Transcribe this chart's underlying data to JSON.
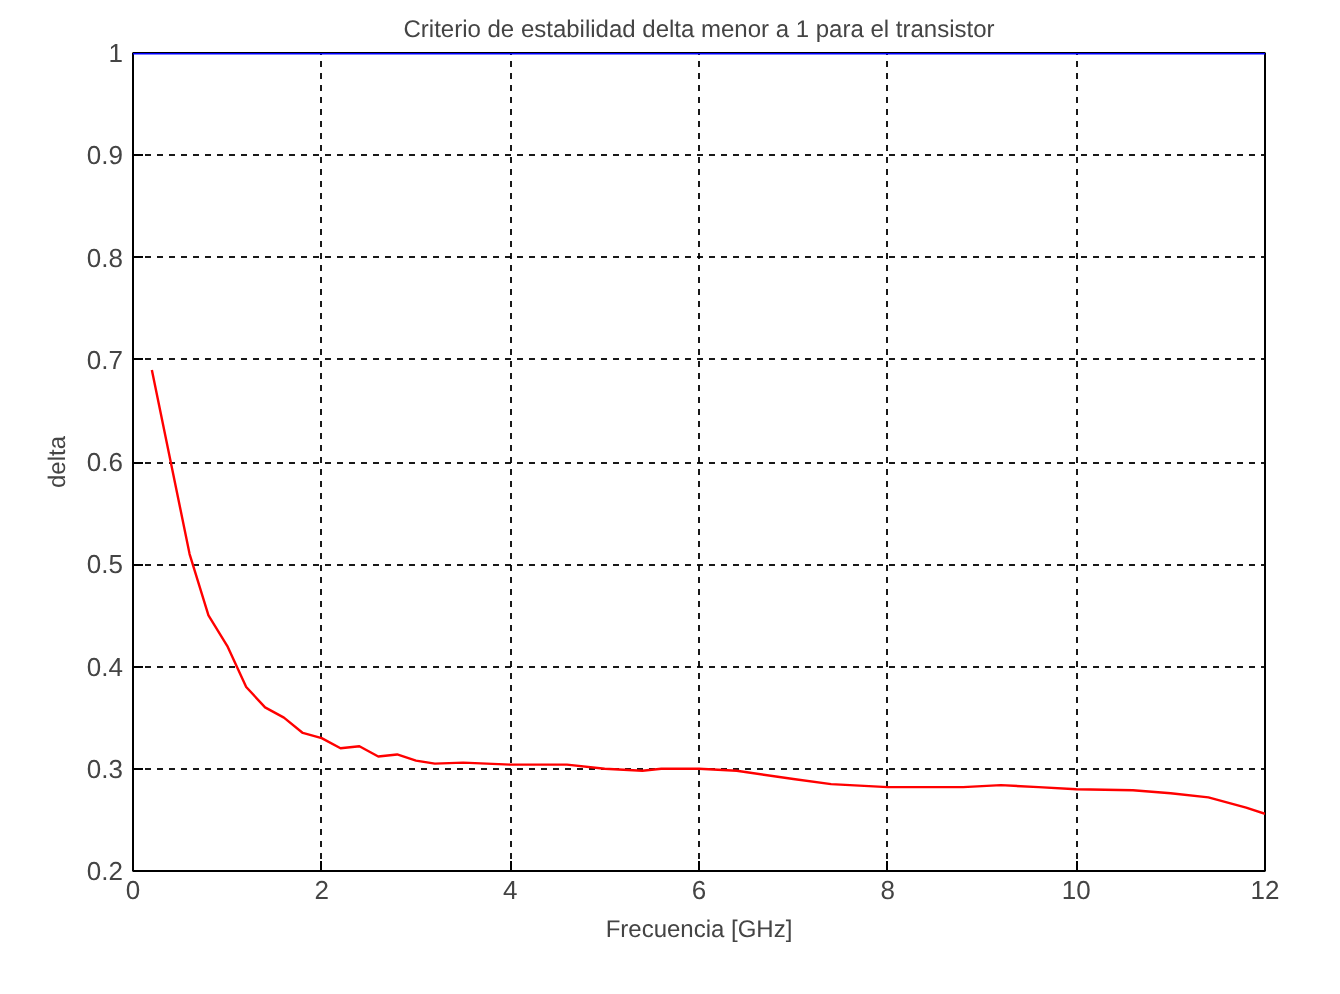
{
  "chart_data": {
    "type": "line",
    "title": "Criterio de estabilidad delta menor a 1 para el transistor",
    "xlabel": "Frecuencia [GHz]",
    "ylabel": "delta",
    "x": [
      0.2,
      0.4,
      0.6,
      0.8,
      1.0,
      1.2,
      1.4,
      1.6,
      1.8,
      2.0,
      2.2,
      2.4,
      2.6,
      2.8,
      3.0,
      3.2,
      3.5,
      4.0,
      4.6,
      5.0,
      5.4,
      5.6,
      6.0,
      6.4,
      7.0,
      7.4,
      8.0,
      8.8,
      9.2,
      9.6,
      10.0,
      10.6,
      11.0,
      11.4,
      11.8,
      12.0
    ],
    "series": [
      {
        "color": "#ff0000",
        "values": [
          0.69,
          0.6,
          0.51,
          0.45,
          0.42,
          0.38,
          0.36,
          0.35,
          0.335,
          0.33,
          0.32,
          0.322,
          0.312,
          0.314,
          0.308,
          0.305,
          0.306,
          0.304,
          0.304,
          0.3,
          0.298,
          0.3,
          0.3,
          0.298,
          0.29,
          0.285,
          0.282,
          0.282,
          0.284,
          0.282,
          0.28,
          0.279,
          0.276,
          0.272,
          0.262,
          0.256
        ]
      }
    ],
    "ref_lines": [
      {
        "axis": "y",
        "value": 1,
        "color": "#0000ff"
      }
    ],
    "xlim": [
      0,
      12
    ],
    "ylim": [
      0.2,
      1
    ],
    "xticks": [
      0,
      2,
      4,
      6,
      8,
      10,
      12
    ],
    "yticks": [
      0.2,
      0.3,
      0.4,
      0.5,
      0.6,
      0.7,
      0.8,
      0.9,
      1
    ],
    "grid": true,
    "marker": "none",
    "line_style": "solid"
  }
}
